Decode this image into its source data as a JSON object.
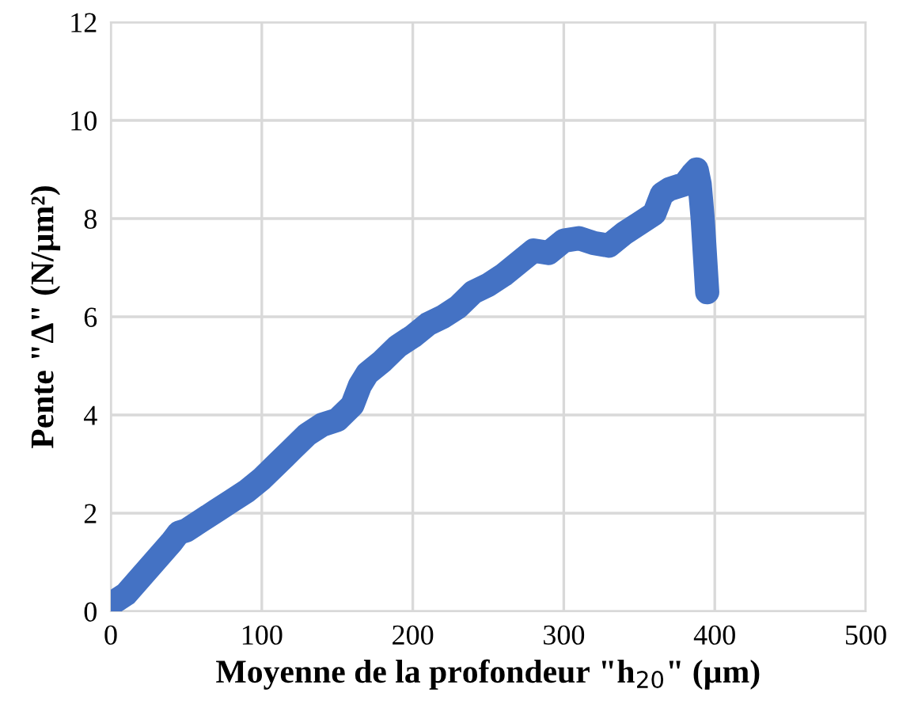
{
  "chart_data": {
    "type": "line",
    "xlabel": "Moyenne de la profondeur \"h$_{20}$\" (µm)",
    "ylabel": "Pente \"Δ\" (N/µm²)",
    "xlim": [
      0,
      500
    ],
    "xticks": [
      0,
      100,
      200,
      300,
      400,
      500
    ],
    "ylim": [
      0,
      12
    ],
    "yticks": [
      0,
      2,
      4,
      6,
      8,
      10,
      12
    ],
    "grid": true,
    "line_style": "solid",
    "series": [
      {
        "color": "#4472c4",
        "x": [
          0,
          10,
          20,
          30,
          40,
          45,
          50,
          60,
          70,
          80,
          90,
          100,
          110,
          115,
          120,
          130,
          140,
          150,
          160,
          165,
          170,
          180,
          190,
          200,
          210,
          220,
          230,
          240,
          250,
          260,
          270,
          280,
          290,
          300,
          310,
          320,
          330,
          340,
          350,
          360,
          365,
          370,
          380,
          385,
          388,
          390,
          392,
          393,
          394,
          395
        ],
        "values": [
          0.15,
          0.35,
          0.7,
          1.05,
          1.4,
          1.6,
          1.65,
          1.85,
          2.05,
          2.25,
          2.45,
          2.7,
          3.0,
          3.15,
          3.3,
          3.6,
          3.8,
          3.9,
          4.2,
          4.6,
          4.85,
          5.1,
          5.4,
          5.6,
          5.85,
          6.0,
          6.2,
          6.5,
          6.65,
          6.85,
          7.1,
          7.35,
          7.3,
          7.55,
          7.6,
          7.5,
          7.45,
          7.7,
          7.9,
          8.1,
          8.5,
          8.6,
          8.7,
          8.9,
          9.0,
          8.7,
          8.0,
          7.5,
          7.0,
          6.5
        ]
      }
    ]
  }
}
